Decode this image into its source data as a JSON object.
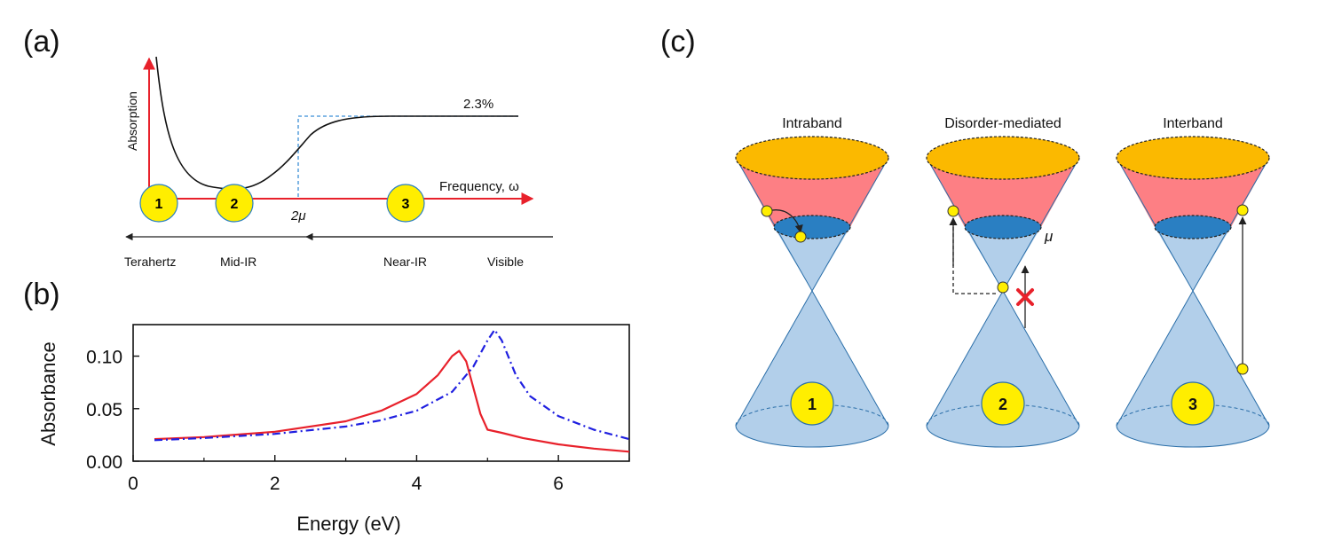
{
  "panel_a": {
    "tag": "(a)",
    "y_label": "Absorption",
    "x_label": "Frequency, ω",
    "level_label": "2.3%",
    "mu_label": "2μ",
    "markers": [
      "1",
      "2",
      "3"
    ],
    "regions": [
      "Terahertz",
      "Mid-IR",
      "Near-IR",
      "Visible"
    ]
  },
  "panel_b": {
    "tag": "(b)",
    "colors": {
      "solid": "#e8212b",
      "dashdot": "#1f1fe0"
    }
  },
  "panel_c": {
    "tag": "(c)",
    "cones": [
      {
        "title": "Intraband",
        "marker": "1"
      },
      {
        "title": "Disorder-mediated",
        "marker": "2"
      },
      {
        "title": "Interband",
        "marker": "3"
      }
    ],
    "mu_label": "μ",
    "colors": {
      "top": "#fbb900",
      "upper": "#fd7f84",
      "fermi": "#2a7fc2",
      "cone": "#b2cfea",
      "dot": "#ffee00"
    }
  },
  "chart_data": {
    "type": "line",
    "xlabel": "Energy (eV)",
    "ylabel": "Absorbance",
    "xlim": [
      0,
      7
    ],
    "ylim": [
      0,
      0.13
    ],
    "xticks": [
      "0",
      "2",
      "4",
      "6"
    ],
    "yticks": [
      "0.00",
      "0.05",
      "0.10"
    ],
    "grid": false,
    "series": [
      {
        "style": "solid",
        "color": "#e8212b",
        "x": [
          0.3,
          1.0,
          2.0,
          3.0,
          3.5,
          4.0,
          4.3,
          4.5,
          4.6,
          4.7,
          4.8,
          4.9,
          5.0,
          5.2,
          5.5,
          6.0,
          6.5,
          7.0
        ],
        "y": [
          0.021,
          0.023,
          0.028,
          0.038,
          0.048,
          0.064,
          0.082,
          0.1,
          0.105,
          0.095,
          0.07,
          0.045,
          0.03,
          0.027,
          0.022,
          0.016,
          0.012,
          0.009
        ]
      },
      {
        "style": "dashdot",
        "color": "#1f1fe0",
        "x": [
          0.3,
          1.0,
          2.0,
          3.0,
          3.5,
          4.0,
          4.5,
          4.8,
          5.0,
          5.1,
          5.2,
          5.4,
          5.6,
          6.0,
          6.5,
          7.0
        ],
        "y": [
          0.02,
          0.022,
          0.026,
          0.033,
          0.039,
          0.048,
          0.066,
          0.09,
          0.115,
          0.125,
          0.115,
          0.082,
          0.062,
          0.043,
          0.03,
          0.021
        ]
      }
    ]
  }
}
